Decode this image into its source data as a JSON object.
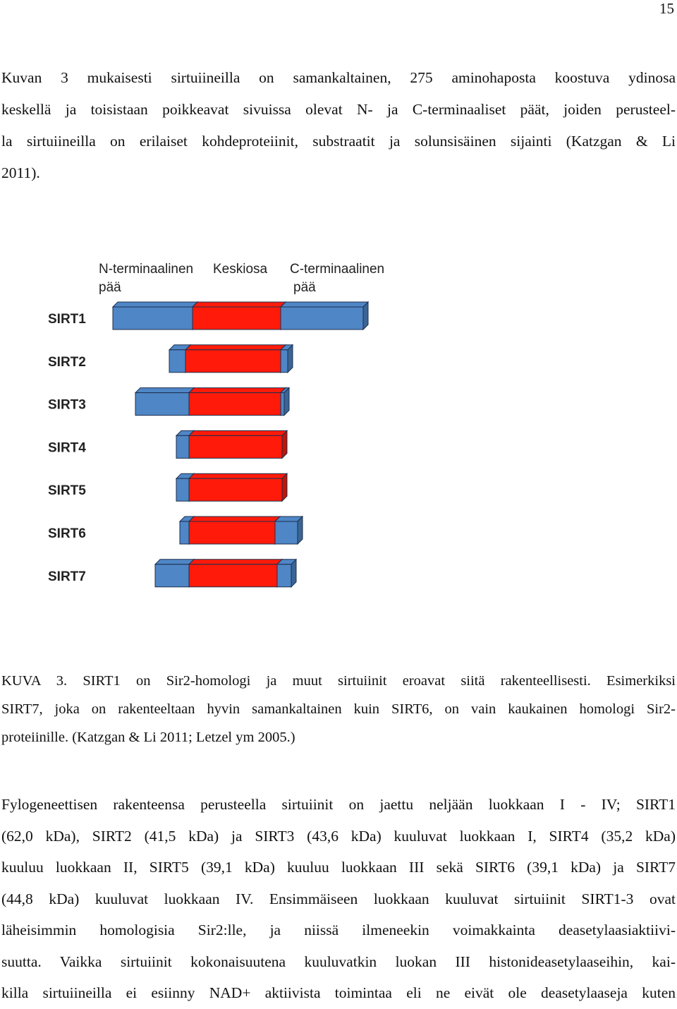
{
  "page_number": "15",
  "paragraph1": [
    "Kuvan 3 mukaisesti sirtuiineilla on samankaltainen, 275 aminohaposta koostuva ydinosa",
    "keskellä ja toisistaan poikkeavat sivuissa olevat N- ja C-terminaaliset päät, joiden perusteel-",
    "la sirtuiineilla on erilaiset kohdeproteiinit, substraatit ja solunsisäinen sijainti (Katzgan & Li",
    "2011)."
  ],
  "figure": {
    "headers": {
      "n_line1": "N-terminaalinen",
      "n_line2": "pää",
      "core": "Keskiosa",
      "c_line1": "C-terminaalinen",
      "c_line2": "pää"
    },
    "rows": [
      {
        "label": "SIRT1",
        "n_start": 100,
        "core_start": 213,
        "core_end": 338,
        "c_end": 455
      },
      {
        "label": "SIRT2",
        "n_start": 180,
        "core_start": 203,
        "core_end": 338,
        "c_end": 348
      },
      {
        "label": "SIRT3",
        "n_start": 132,
        "core_start": 208,
        "core_end": 338,
        "c_end": 343
      },
      {
        "label": "SIRT4",
        "n_start": 190,
        "core_start": 208,
        "core_end": 340,
        "c_end": 340
      },
      {
        "label": "SIRT5",
        "n_start": 190,
        "core_start": 208,
        "core_end": 340,
        "c_end": 340
      },
      {
        "label": "SIRT6",
        "n_start": 195,
        "core_start": 208,
        "core_end": 330,
        "c_end": 362
      },
      {
        "label": "SIRT7",
        "n_start": 160,
        "core_start": 208,
        "core_end": 333,
        "c_end": 353
      }
    ],
    "colors": {
      "terminal": "#4f86c6",
      "core": "#ff1a0a",
      "outline": "#1c2f4d"
    }
  },
  "caption": [
    "KUVA 3. SIRT1 on Sir2-homologi ja muut sirtuiinit eroavat siitä rakenteellisesti. Esimerkiksi",
    "SIRT7, joka on rakenteeltaan hyvin samankaltainen kuin SIRT6, on vain kaukainen homologi Sir2-",
    "proteiinille. (Katzgan & Li 2011; Letzel ym 2005.)"
  ],
  "paragraph2": [
    "Fylogeneettisen rakenteensa perusteella sirtuiinit on jaettu neljään luokkaan I - IV; SIRT1",
    "(62,0 kDa), SIRT2 (41,5 kDa) ja SIRT3 (43,6 kDa) kuuluvat luokkaan I, SIRT4 (35,2 kDa)",
    "kuuluu luokkaan II, SIRT5 (39,1 kDa) kuuluu luokkaan III sekä SIRT6 (39,1 kDa) ja SIRT7",
    "(44,8 kDa) kuuluvat luokkaan IV. Ensimmäiseen luokkaan kuuluvat sirtuiinit SIRT1-3 ovat",
    "läheisimmin homologisia Sir2:lle, ja niissä ilmeneekin voimakkainta deasetylaasiaktiivi-",
    "suutta. Vaikka sirtuiinit kokonaisuutena kuuluvatkin luokan III histonideasetylaaseihin, kai-",
    "killa sirtuiineilla ei esiinny NAD+ aktiivista toimintaa eli ne eivät ole deasetylaaseja kuten"
  ]
}
